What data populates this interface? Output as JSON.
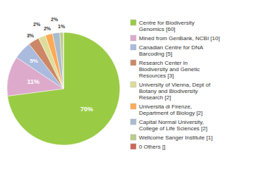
{
  "chart_data": {
    "type": "pie",
    "categories": [
      "Centre for Biodiversity\nGenomics [60]",
      "Mined from GenBank, NCBI [10]",
      "Canadian Centre for DNA\nBarcoding [5]",
      "Research Center in\nBiodiversity and Genetic\nResources [3]",
      "University of Vienna, Dept of\nBotany and Biodiversity\nResearch [2]",
      "Universita di Firenze,\nDepartment of Biology [2]",
      "Capital Normal University,\nCollege of Life Sciences [2]",
      "Wellcome Sanger Institute [1]",
      "0 Others []"
    ],
    "values": [
      70,
      11,
      5,
      3,
      2,
      2,
      2,
      1,
      0
    ],
    "value_labels": [
      "70%",
      "11%",
      "5%",
      "3%",
      "2%",
      "2%",
      "2%",
      "1%",
      null
    ],
    "colors": [
      "#99cc44",
      "#ddaacc",
      "#aabbdd",
      "#cc8866",
      "#dddd99",
      "#ffaa55",
      "#aabbcc",
      "#bbcc88",
      "#cc6655"
    ],
    "data_labels": true,
    "legend": "right"
  }
}
